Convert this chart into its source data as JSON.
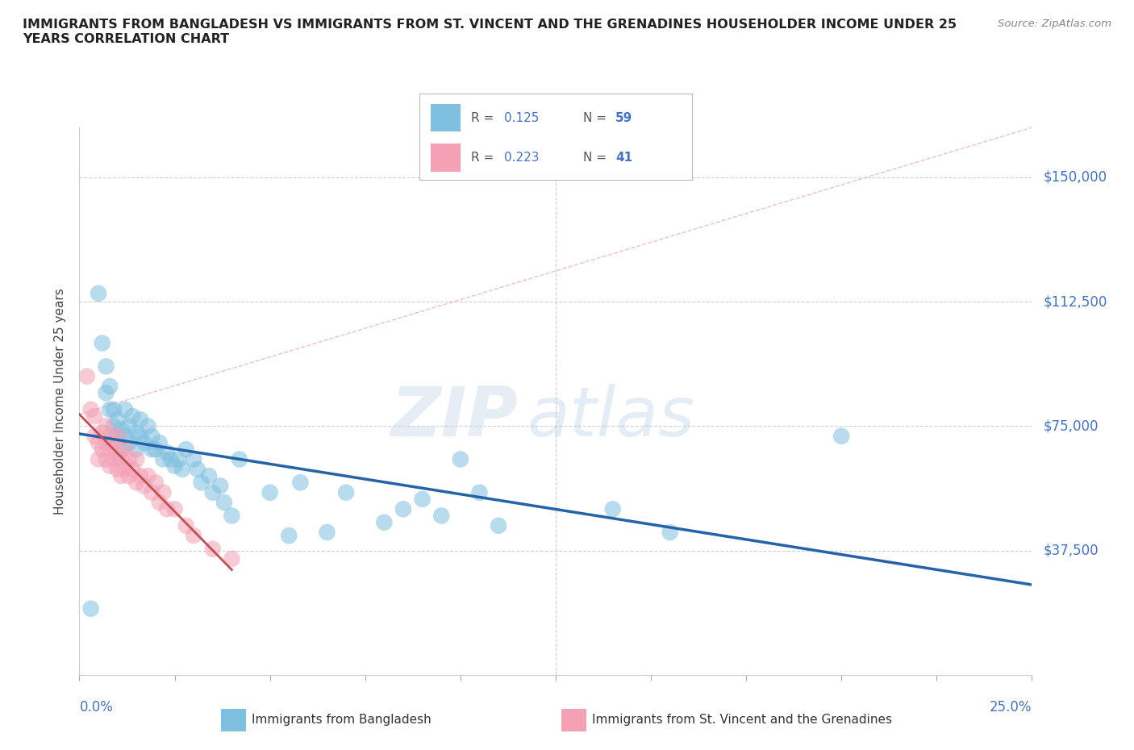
{
  "title": "IMMIGRANTS FROM BANGLADESH VS IMMIGRANTS FROM ST. VINCENT AND THE GRENADINES HOUSEHOLDER INCOME UNDER 25\nYEARS CORRELATION CHART",
  "source": "Source: ZipAtlas.com",
  "ylabel": "Householder Income Under 25 years",
  "ytick_labels": [
    "$37,500",
    "$75,000",
    "$112,500",
    "$150,000"
  ],
  "ytick_values": [
    37500,
    75000,
    112500,
    150000
  ],
  "xlim": [
    0.0,
    0.25
  ],
  "ylim": [
    0,
    165000
  ],
  "watermark": "ZIPatlas",
  "legend_r1": "R = 0.125",
  "legend_n1": "N = 59",
  "legend_r2": "R = 0.223",
  "legend_n2": "N = 41",
  "color_bangladesh": "#7fbfdf",
  "color_stvincent": "#f4a0b5",
  "trend_line_color_bangladesh": "#2563a8",
  "trend_line_color_stvincent": "#c0504d",
  "ref_line_color": "#e8a0a8",
  "bangladesh_x": [
    0.003,
    0.005,
    0.006,
    0.007,
    0.007,
    0.008,
    0.008,
    0.009,
    0.009,
    0.01,
    0.01,
    0.011,
    0.011,
    0.012,
    0.012,
    0.013,
    0.013,
    0.014,
    0.015,
    0.015,
    0.016,
    0.016,
    0.017,
    0.018,
    0.019,
    0.019,
    0.02,
    0.021,
    0.022,
    0.023,
    0.024,
    0.025,
    0.026,
    0.027,
    0.028,
    0.03,
    0.031,
    0.032,
    0.034,
    0.035,
    0.037,
    0.038,
    0.04,
    0.042,
    0.05,
    0.055,
    0.058,
    0.065,
    0.07,
    0.08,
    0.085,
    0.09,
    0.095,
    0.1,
    0.105,
    0.11,
    0.14,
    0.155,
    0.2
  ],
  "bangladesh_y": [
    20000,
    115000,
    100000,
    85000,
    93000,
    80000,
    87000,
    75000,
    80000,
    72000,
    77000,
    68000,
    74000,
    80000,
    72000,
    75000,
    70000,
    78000,
    73000,
    68000,
    72000,
    77000,
    70000,
    75000,
    68000,
    72000,
    68000,
    70000,
    65000,
    67000,
    65000,
    63000,
    65000,
    62000,
    68000,
    65000,
    62000,
    58000,
    60000,
    55000,
    57000,
    52000,
    48000,
    65000,
    55000,
    42000,
    58000,
    43000,
    55000,
    46000,
    50000,
    53000,
    48000,
    65000,
    55000,
    45000,
    50000,
    43000,
    72000
  ],
  "stvincent_x": [
    0.002,
    0.003,
    0.004,
    0.004,
    0.005,
    0.005,
    0.006,
    0.006,
    0.007,
    0.007,
    0.007,
    0.008,
    0.008,
    0.008,
    0.009,
    0.009,
    0.01,
    0.01,
    0.01,
    0.011,
    0.011,
    0.012,
    0.012,
    0.013,
    0.013,
    0.014,
    0.015,
    0.015,
    0.016,
    0.017,
    0.018,
    0.019,
    0.02,
    0.021,
    0.022,
    0.023,
    0.025,
    0.028,
    0.03,
    0.035,
    0.04
  ],
  "stvincent_y": [
    90000,
    80000,
    72000,
    78000,
    70000,
    65000,
    68000,
    73000,
    65000,
    70000,
    75000,
    68000,
    63000,
    72000,
    65000,
    70000,
    62000,
    67000,
    72000,
    60000,
    65000,
    62000,
    68000,
    60000,
    65000,
    62000,
    58000,
    65000,
    60000,
    57000,
    60000,
    55000,
    58000,
    52000,
    55000,
    50000,
    50000,
    45000,
    42000,
    38000,
    35000
  ]
}
